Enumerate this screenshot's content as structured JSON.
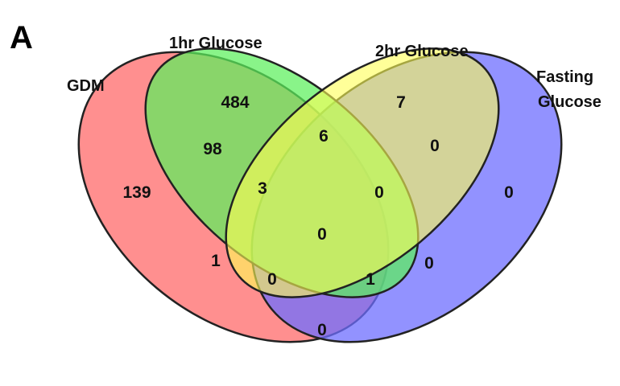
{
  "panel_label": "A",
  "sets": [
    {
      "id": "gdm",
      "name": "GDM",
      "color": "#ff6a6a"
    },
    {
      "id": "hr1",
      "name": "1hr Glucose",
      "color": "#6cf06c"
    },
    {
      "id": "hr2",
      "name": "2hr Glucose",
      "color": "#ffff70"
    },
    {
      "id": "fasting",
      "name_line1": "Fasting",
      "name_line2": "Glucose",
      "color": "#7070ff"
    }
  ],
  "regions": {
    "gdm_only": "139",
    "hr1_only": "484",
    "hr2_only": "7",
    "fasting_only": "0",
    "gdm_hr1": "98",
    "hr1_hr2": "6",
    "hr2_fasting": "0",
    "gdm_hr1_hr2": "3",
    "hr1_hr2_fasting": "0",
    "all_four": "0",
    "gdm_hr2": "1",
    "hr1_fasting": "0",
    "gdm_hr2_fasting": "0",
    "gdm_hr1_fasting": "1",
    "gdm_fasting": "0"
  }
}
